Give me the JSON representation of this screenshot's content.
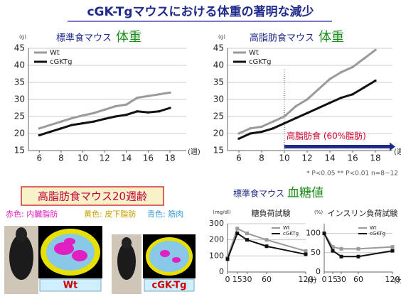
{
  "header": {
    "title": "cGK-Tgマウスにおける体重の著明な減少"
  },
  "fat_panel": {
    "title": "高脂肪食マウス20週齢",
    "legend": [
      "赤色: 内臓脂肪",
      "黄色: 皮下脂肪",
      "青色: 筋肉"
    ],
    "captions": [
      "Wt",
      "cGK-Tg"
    ]
  },
  "glucose_heading": [
    "標準食マウス",
    "血糖値"
  ],
  "footnote": "* P<0.05 ** P<0.01 n=8~12",
  "chart_data": [
    {
      "type": "line",
      "title_prefix": "標準食マウス",
      "title": "体重",
      "y_unit": "(g)",
      "x_label": "(週)",
      "x": [
        6,
        7,
        8,
        9,
        10,
        11,
        12,
        13,
        14,
        15,
        16,
        17,
        18
      ],
      "xlim": [
        5,
        19.5
      ],
      "xticks": [
        6,
        8,
        10,
        12,
        14,
        16,
        18
      ],
      "ylim": [
        15,
        45
      ],
      "yticks": [
        15,
        20,
        25,
        30,
        35,
        40,
        45
      ],
      "grid": true,
      "legend": "upper left",
      "markers": false,
      "series": [
        {
          "name": "Wt",
          "color": "#9a9a9a",
          "values": [
            21.5,
            22.5,
            23.5,
            24.5,
            25.3,
            26,
            27,
            28,
            28.5,
            30.5,
            31,
            31.5,
            32
          ]
        },
        {
          "name": "cGKTg",
          "color": "#111111",
          "values": [
            19.5,
            20.5,
            21.5,
            22.5,
            23,
            23.5,
            24.3,
            25,
            25.5,
            26.5,
            26.2,
            26.5,
            27.5
          ]
        }
      ]
    },
    {
      "type": "line",
      "title_prefix": "高脂肪食マウス",
      "title": "体重",
      "y_unit": "(g)",
      "x_label": "(週)",
      "x": [
        6,
        7,
        8,
        9,
        10,
        11,
        12,
        13,
        14,
        15,
        16,
        17,
        18
      ],
      "xlim": [
        5,
        19.5
      ],
      "xticks": [
        6,
        8,
        10,
        12,
        14,
        16,
        18
      ],
      "ylim": [
        15,
        45
      ],
      "yticks": [
        15,
        20,
        25,
        30,
        35,
        40,
        45
      ],
      "grid": true,
      "legend": "upper left",
      "markers": false,
      "annotation": "高脂肪食 (60%脂肪)",
      "annotation_start": 10,
      "series": [
        {
          "name": "Wt",
          "color": "#9a9a9a",
          "values": [
            20,
            21.5,
            22,
            23.5,
            25,
            28,
            30,
            33,
            36,
            38,
            39.5,
            42,
            44.5
          ]
        },
        {
          "name": "cGKTg",
          "color": "#111111",
          "values": [
            18.5,
            20,
            20.5,
            21.5,
            23,
            24.5,
            26,
            27.5,
            29,
            30.5,
            31.5,
            33.5,
            35.5
          ]
        }
      ]
    },
    {
      "type": "line",
      "title": "糖負荷試験",
      "y_unit": "(mg/dl)",
      "x_label": "(分",
      "x": [
        0,
        15,
        30,
        60,
        120
      ],
      "xlim": [
        0,
        120
      ],
      "xticks": [
        0,
        15,
        30,
        60,
        120
      ],
      "ylim": [
        0,
        300
      ],
      "yticks": [
        0,
        100,
        200,
        300
      ],
      "grid": true,
      "legend": "upper right",
      "markers": true,
      "series": [
        {
          "name": "Wt",
          "color": "#9a9a9a",
          "values": [
            90,
            270,
            240,
            200,
            130
          ]
        },
        {
          "name": "cGKTg",
          "color": "#111111",
          "values": [
            80,
            240,
            200,
            160,
            110
          ]
        }
      ]
    },
    {
      "type": "line",
      "title": "インスリン負荷試験",
      "y_unit": "(%)",
      "x_label": "(分",
      "x": [
        0,
        15,
        30,
        60,
        120
      ],
      "xlim": [
        0,
        120
      ],
      "xticks": [
        0,
        15,
        30,
        60,
        120
      ],
      "ylim": [
        0,
        125
      ],
      "yticks": [
        0,
        50,
        100
      ],
      "grid": true,
      "legend": "upper right",
      "markers": true,
      "series": [
        {
          "name": "Wt",
          "color": "#9a9a9a",
          "values": [
            100,
            65,
            60,
            60,
            65
          ]
        },
        {
          "name": "cGKTg",
          "color": "#111111",
          "values": [
            100,
            55,
            40,
            40,
            55
          ]
        }
      ]
    }
  ]
}
